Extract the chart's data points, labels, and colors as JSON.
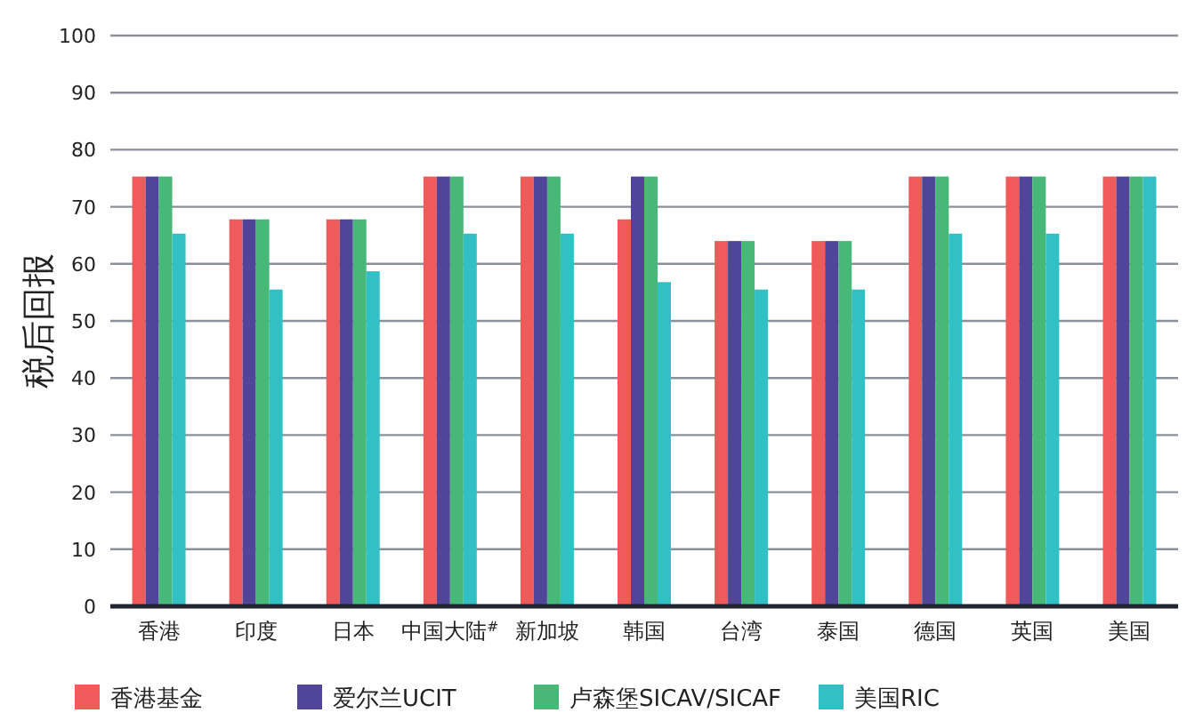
{
  "chart_data": {
    "type": "bar",
    "ylabel": "税后回报",
    "categories": [
      "香港",
      "印度",
      "日本",
      "中国大陆$^{#}$",
      "新加坡",
      "韩国",
      "台湾",
      "泰国",
      "德国",
      "英国",
      "美国"
    ],
    "series": [
      {
        "name": "香港基金",
        "color": "#ef5b5b",
        "values": [
          75.3,
          67.8,
          67.8,
          75.3,
          75.3,
          67.8,
          64.0,
          64.0,
          75.3,
          75.3,
          75.3
        ]
      },
      {
        "name": "爱尔兰UCIT",
        "color": "#51459a",
        "values": [
          75.3,
          67.8,
          67.8,
          75.3,
          75.3,
          75.3,
          64.0,
          64.0,
          75.3,
          75.3,
          75.3
        ]
      },
      {
        "name": "卢森堡SICAV/SICAF",
        "color": "#47b877",
        "values": [
          75.3,
          67.8,
          67.8,
          75.3,
          75.3,
          75.3,
          64.0,
          64.0,
          75.3,
          75.3,
          75.3
        ]
      },
      {
        "name": "美国RIC",
        "color": "#31c0c3",
        "values": [
          65.3,
          55.5,
          58.7,
          65.3,
          65.3,
          56.8,
          55.5,
          55.5,
          65.3,
          65.3,
          75.3
        ]
      }
    ],
    "ylim": [
      0,
      100
    ],
    "yticks": [
      0,
      10,
      20,
      30,
      40,
      50,
      60,
      70,
      80,
      90,
      100
    ],
    "grid": "y",
    "legend": "bottom"
  }
}
